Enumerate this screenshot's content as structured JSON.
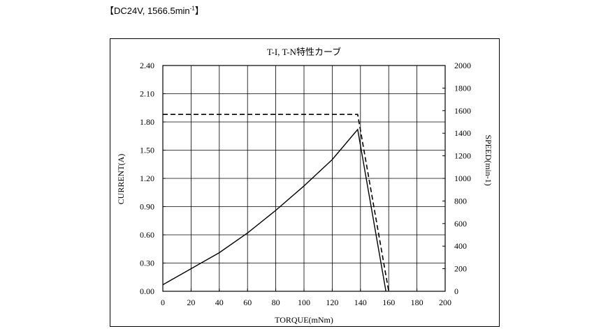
{
  "caption": {
    "open_bracket": "【",
    "prefix": "DC24V, 1566.5min",
    "superscript": "-1",
    "close_bracket": "】"
  },
  "chart_data": {
    "type": "line",
    "title": "T-I, T-N特性カーブ",
    "xlabel": "TORQUE(mNm)",
    "ylabel_left": "CURRENT(A)",
    "ylabel_right": "SPEED(min-1)",
    "xlim": [
      0,
      200
    ],
    "ylim_left": [
      0,
      2.4
    ],
    "ylim_right": [
      0,
      2000
    ],
    "x_ticks": [
      "0",
      "20",
      "40",
      "60",
      "80",
      "100",
      "120",
      "140",
      "160",
      "180",
      "200"
    ],
    "y_left_ticks": [
      "0.00",
      "0.30",
      "0.60",
      "0.90",
      "1.20",
      "1.50",
      "1.80",
      "2.10",
      "2.40"
    ],
    "y_right_ticks": [
      "0",
      "200",
      "400",
      "600",
      "800",
      "1000",
      "1200",
      "1400",
      "1600",
      "1800",
      "2000"
    ],
    "grid": true,
    "series": [
      {
        "axis": "left",
        "style": "solid",
        "color": "#000000",
        "x": [
          0,
          20,
          40,
          60,
          80,
          100,
          120,
          138,
          158
        ],
        "y": [
          0.07,
          0.24,
          0.41,
          0.62,
          0.86,
          1.12,
          1.4,
          1.72,
          0.0
        ]
      },
      {
        "axis": "right",
        "style": "dashed",
        "color": "#000000",
        "x": [
          0,
          138,
          160
        ],
        "y": [
          1566.5,
          1566.5,
          0
        ]
      }
    ]
  }
}
